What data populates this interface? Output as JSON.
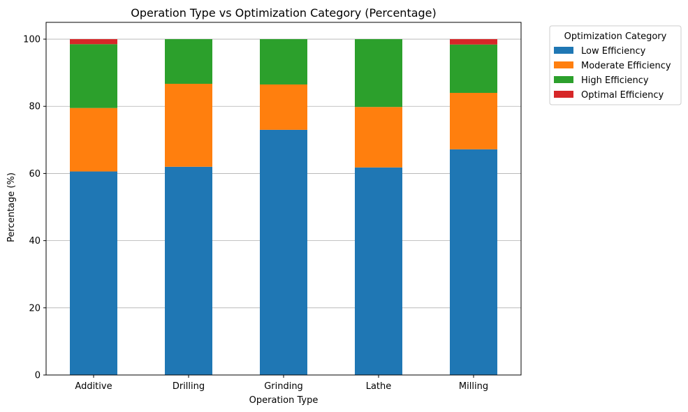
{
  "chart_data": {
    "type": "bar",
    "stacked": true,
    "title": "Operation Type vs Optimization Category (Percentage)",
    "xlabel": "Operation Type",
    "ylabel": "Percentage (%)",
    "categories": [
      "Additive",
      "Drilling",
      "Grinding",
      "Lathe",
      "Milling"
    ],
    "ylim": [
      0,
      105
    ],
    "yticks": [
      0,
      20,
      40,
      60,
      80,
      100
    ],
    "grid": "y",
    "legend": {
      "title": "Optimization Category",
      "placement": "outside upper right"
    },
    "series": [
      {
        "name": "Low Efficiency",
        "color": "#1f77b4",
        "values": [
          60.6,
          62.0,
          73.0,
          61.8,
          67.2
        ]
      },
      {
        "name": "Moderate Efficiency",
        "color": "#ff7f0e",
        "values": [
          18.9,
          24.7,
          13.5,
          18.0,
          16.8
        ]
      },
      {
        "name": "High Efficiency",
        "color": "#2ca02c",
        "values": [
          19.0,
          13.3,
          13.5,
          20.2,
          14.4
        ]
      },
      {
        "name": "Optimal Efficiency",
        "color": "#d62728",
        "values": [
          1.5,
          0.0,
          0.0,
          0.0,
          1.6
        ]
      }
    ]
  }
}
